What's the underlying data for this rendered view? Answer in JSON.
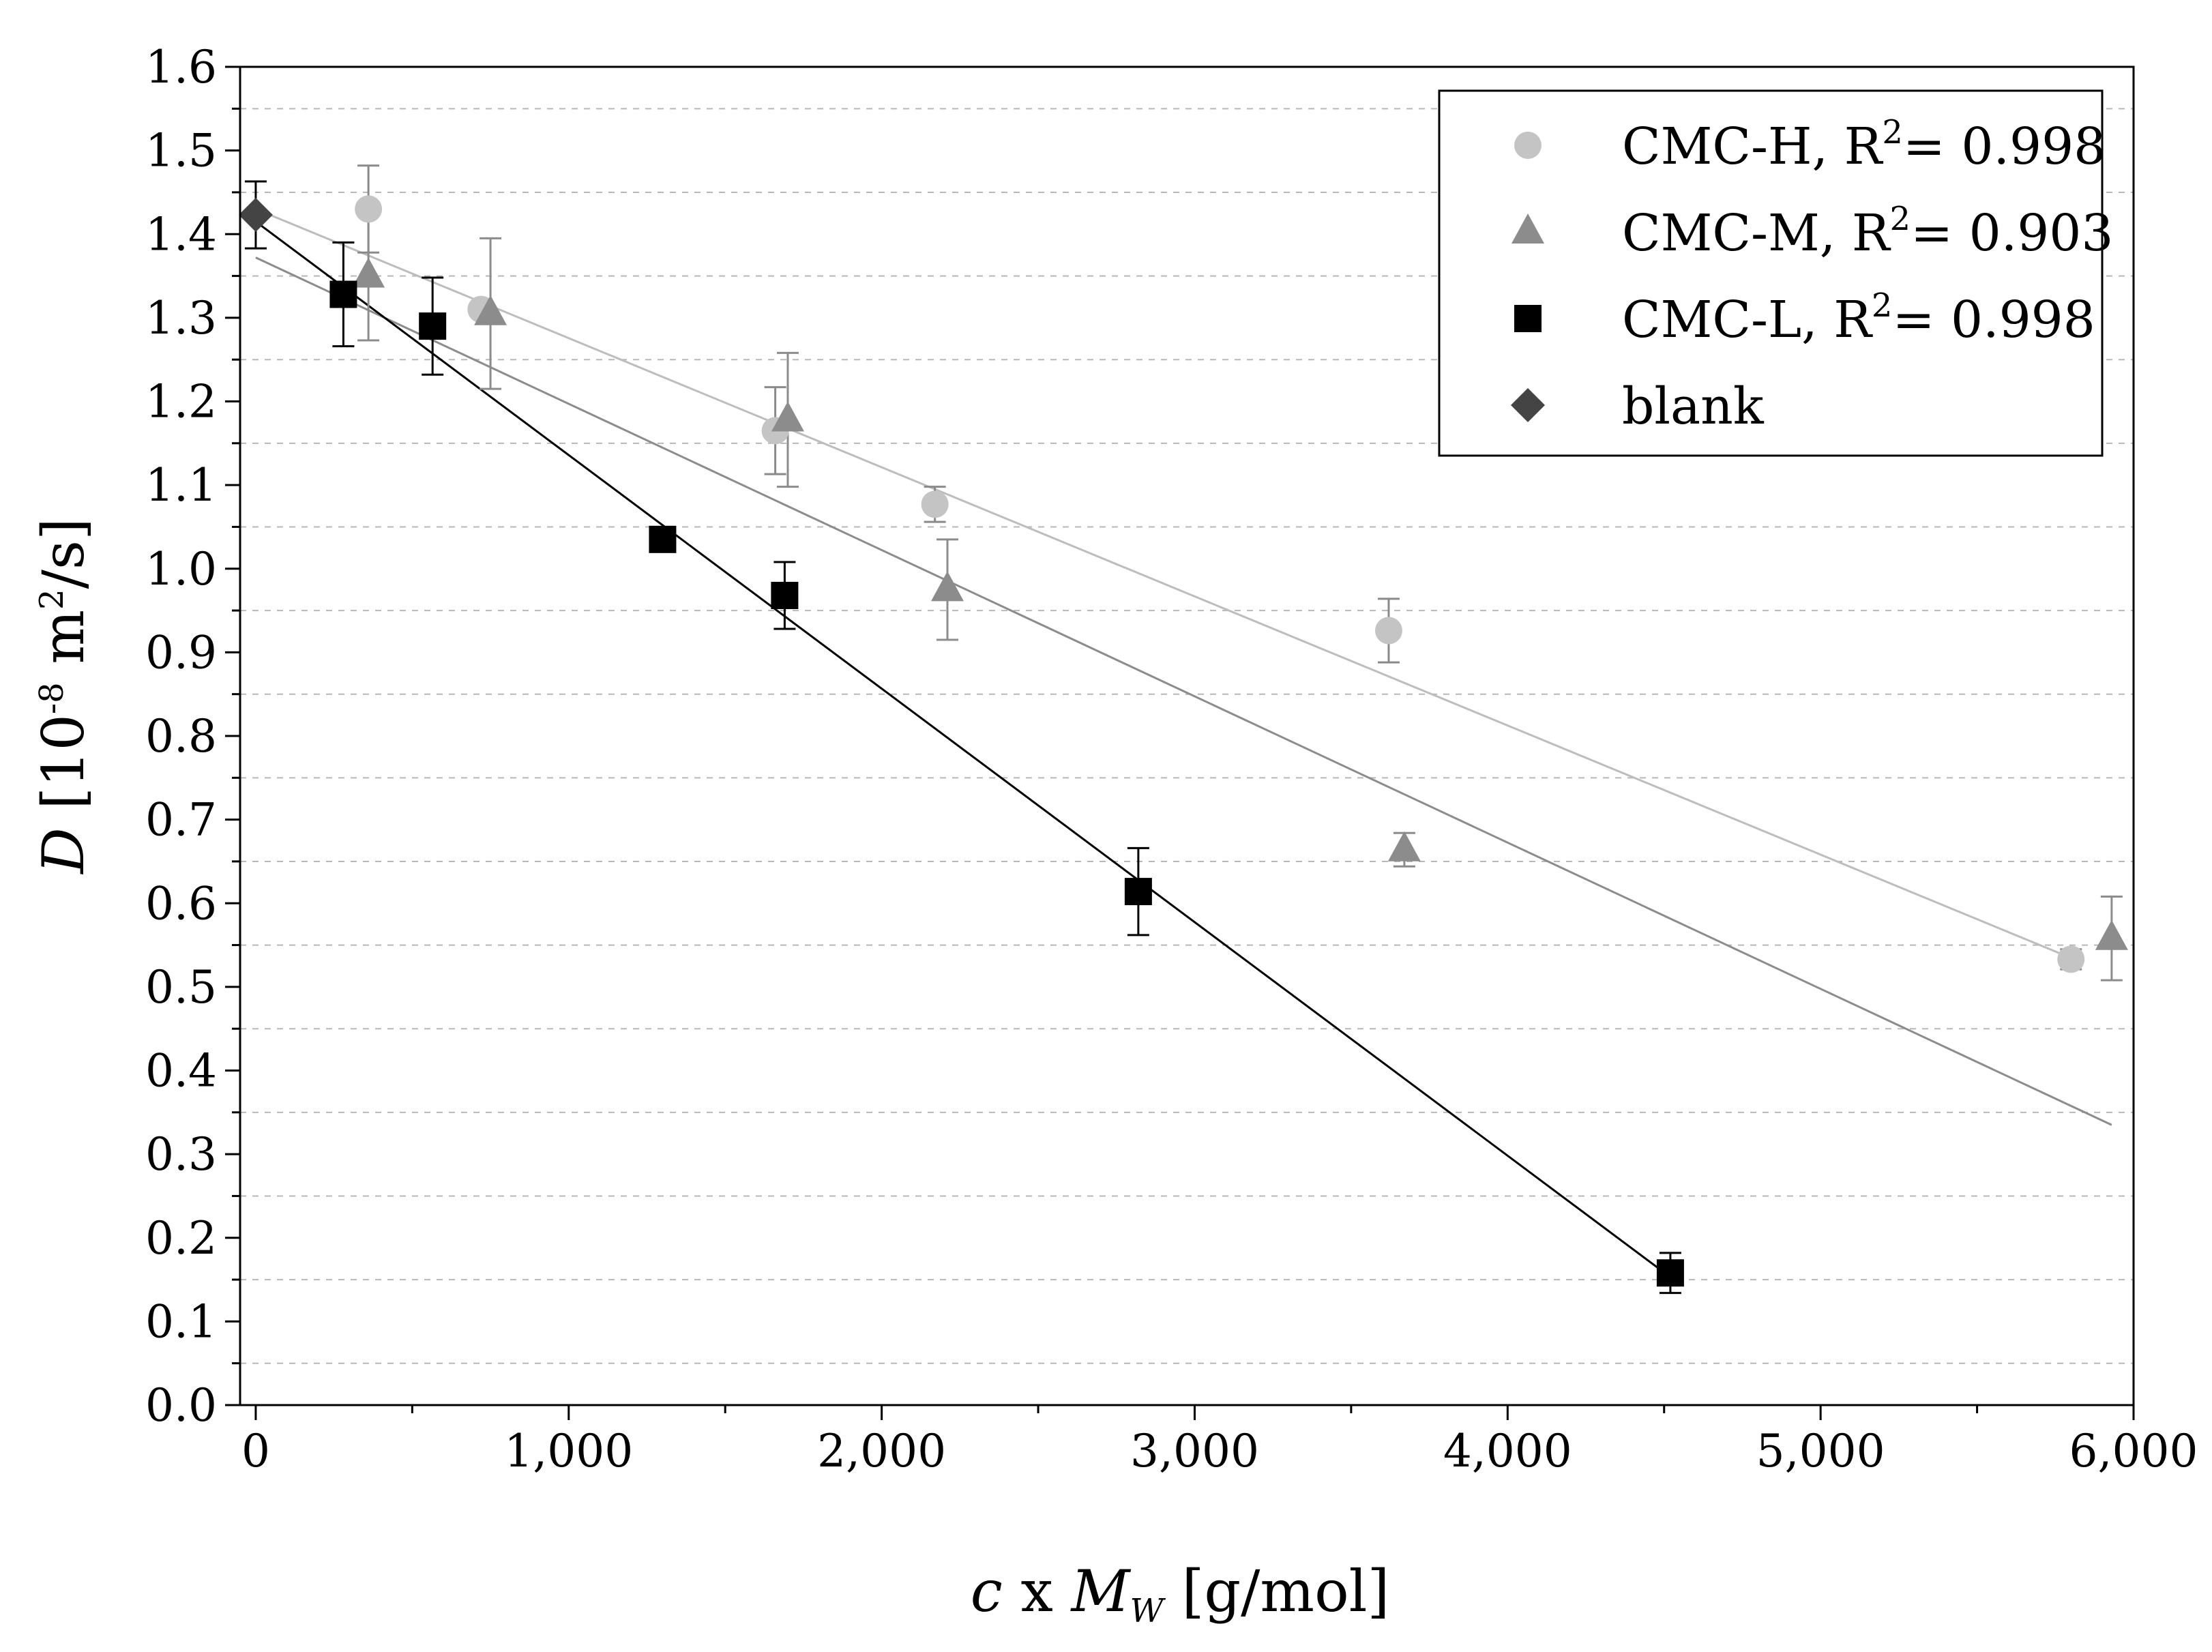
{
  "chart_data": {
    "type": "scatter",
    "title": "",
    "xlabel": {
      "italic": "c",
      "mid": " x ",
      "italic2": "M",
      "sub": "W",
      "rest": " [g/mol]"
    },
    "ylabel": {
      "italic": "D",
      "pre": " [10",
      "sup1": "-8",
      "mid": " m",
      "sup2": "2",
      "post": "/s]"
    },
    "xlim": [
      -50,
      6000
    ],
    "ylim": [
      0,
      1.6
    ],
    "x_ticks": [
      {
        "value": 0,
        "label": "0"
      },
      {
        "value": 1000,
        "label": "1,000"
      },
      {
        "value": 2000,
        "label": "2,000"
      },
      {
        "value": 3000,
        "label": "3,000"
      },
      {
        "value": 4000,
        "label": "4,000"
      },
      {
        "value": 5000,
        "label": "5,000"
      },
      {
        "value": 6000,
        "label": "6,000"
      }
    ],
    "y_ticks": [
      {
        "value": 0.0,
        "label": "0.0"
      },
      {
        "value": 0.1,
        "label": "0.1"
      },
      {
        "value": 0.2,
        "label": "0.2"
      },
      {
        "value": 0.3,
        "label": "0.3"
      },
      {
        "value": 0.4,
        "label": "0.4"
      },
      {
        "value": 0.5,
        "label": "0.5"
      },
      {
        "value": 0.6,
        "label": "0.6"
      },
      {
        "value": 0.7,
        "label": "0.7"
      },
      {
        "value": 0.8,
        "label": "0.8"
      },
      {
        "value": 0.9,
        "label": "0.9"
      },
      {
        "value": 1.0,
        "label": "1.0"
      },
      {
        "value": 1.1,
        "label": "1.1"
      },
      {
        "value": 1.2,
        "label": "1.2"
      },
      {
        "value": 1.3,
        "label": "1.3"
      },
      {
        "value": 1.4,
        "label": "1.4"
      },
      {
        "value": 1.5,
        "label": "1.5"
      },
      {
        "value": 1.6,
        "label": "1.6"
      }
    ],
    "grid": {
      "horizontal_dashed": true,
      "values": [
        0.05,
        0.15,
        0.25,
        0.35,
        0.45,
        0.55,
        0.65,
        0.75,
        0.85,
        0.95,
        1.05,
        1.15,
        1.25,
        1.35,
        1.45,
        1.55
      ]
    },
    "legend_position": "top-right",
    "series": [
      {
        "name": "CMC-H",
        "legend": {
          "label": "CMC-H, R",
          "sup": "2",
          "rest": "= 0.998"
        },
        "marker": "circle",
        "color": "#c4c4c4",
        "error_color": "#8a8a8a",
        "points": [
          {
            "x": 360,
            "y": 1.43,
            "err": 0.052
          },
          {
            "x": 720,
            "y": 1.31,
            "err": 0.0
          },
          {
            "x": 1660,
            "y": 1.165,
            "err": 0.052
          },
          {
            "x": 2170,
            "y": 1.077,
            "err": 0.021
          },
          {
            "x": 3620,
            "y": 0.926,
            "err": 0.038
          },
          {
            "x": 5800,
            "y": 0.533,
            "err": 0.012
          }
        ],
        "fit": {
          "x_start": 0,
          "y_start": 1.43,
          "x_end": 5830,
          "y_end": 0.53
        }
      },
      {
        "name": "CMC-M",
        "legend": {
          "label": "CMC-M, R",
          "sup": "2",
          "rest": "= 0.903"
        },
        "marker": "triangle",
        "color": "#8c8c8c",
        "error_color": "#8c8c8c",
        "points": [
          {
            "x": 360,
            "y": 1.35,
            "err": 0.077
          },
          {
            "x": 750,
            "y": 1.305,
            "err": 0.09
          },
          {
            "x": 1700,
            "y": 1.178,
            "err": 0.08
          },
          {
            "x": 2210,
            "y": 0.975,
            "err": 0.06
          },
          {
            "x": 3670,
            "y": 0.664,
            "err": 0.02
          },
          {
            "x": 5930,
            "y": 0.558,
            "err": 0.05
          }
        ],
        "fit": {
          "x_start": 0,
          "y_start": 1.372,
          "x_end": 5930,
          "y_end": 0.335
        }
      },
      {
        "name": "CMC-L",
        "legend": {
          "label": "CMC-L,  R",
          "sup": "2",
          "rest": "= 0.998"
        },
        "marker": "square",
        "color": "#000000",
        "error_color": "#000000",
        "points": [
          {
            "x": 280,
            "y": 1.328,
            "err": 0.062
          },
          {
            "x": 565,
            "y": 1.29,
            "err": 0.058
          },
          {
            "x": 1300,
            "y": 1.035,
            "err": 0.0
          },
          {
            "x": 1690,
            "y": 0.968,
            "err": 0.04
          },
          {
            "x": 2820,
            "y": 0.614,
            "err": 0.052
          },
          {
            "x": 4520,
            "y": 0.158,
            "err": 0.024
          }
        ],
        "fit": {
          "x_start": 0,
          "y_start": 1.415,
          "x_end": 4520,
          "y_end": 0.153
        }
      },
      {
        "name": "blank",
        "legend": {
          "label": "blank",
          "sup": "",
          "rest": ""
        },
        "marker": "diamond",
        "color": "#444444",
        "error_color": "#000000",
        "points": [
          {
            "x": 0,
            "y": 1.423,
            "err": 0.04
          }
        ],
        "fit": null
      }
    ]
  }
}
